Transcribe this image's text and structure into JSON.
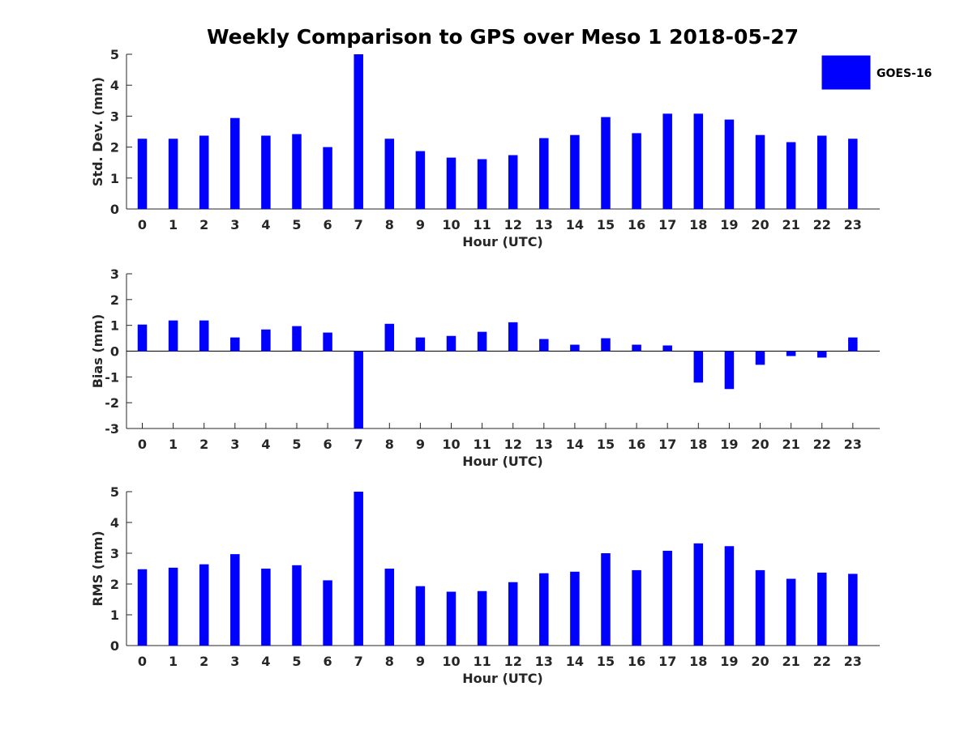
{
  "chart_data": {
    "title": "Weekly Comparison to GPS over Meso 1 2018-05-27",
    "type": "bar",
    "legend": {
      "label": "GOES-16",
      "color": "#0000ff",
      "placement": "top-right"
    },
    "categories": [
      "0",
      "1",
      "2",
      "3",
      "4",
      "5",
      "6",
      "7",
      "8",
      "9",
      "10",
      "11",
      "12",
      "13",
      "14",
      "15",
      "16",
      "17",
      "18",
      "19",
      "20",
      "21",
      "22",
      "23"
    ],
    "panels": [
      {
        "name": "std-dev",
        "xlabel": "Hour (UTC)",
        "ylabel": "Std. Dev. (mm)",
        "ylim": [
          0,
          5
        ],
        "yticks": [
          0,
          1,
          2,
          3,
          4,
          5
        ],
        "series": [
          {
            "name": "GOES-16",
            "values": [
              2.27,
              2.27,
              2.37,
              2.94,
              2.37,
              2.42,
              2.0,
              5.0,
              2.27,
              1.87,
              1.66,
              1.61,
              1.74,
              2.29,
              2.39,
              2.97,
              2.45,
              3.08,
              3.08,
              2.89,
              2.39,
              2.16,
              2.37,
              2.27
            ]
          }
        ]
      },
      {
        "name": "bias",
        "xlabel": "Hour (UTC)",
        "ylabel": "Bias (mm)",
        "ylim": [
          -3,
          3
        ],
        "yticks": [
          -3,
          -2,
          -1,
          0,
          1,
          2,
          3
        ],
        "series": [
          {
            "name": "GOES-16",
            "values": [
              1.03,
              1.19,
              1.19,
              0.53,
              0.84,
              0.97,
              0.72,
              -3.0,
              1.06,
              0.53,
              0.59,
              0.75,
              1.12,
              0.47,
              0.25,
              0.5,
              0.25,
              0.22,
              -1.22,
              -1.47,
              -0.53,
              -0.19,
              -0.25,
              0.53
            ]
          }
        ]
      },
      {
        "name": "rms",
        "xlabel": "Hour (UTC)",
        "ylabel": "RMS (mm)",
        "ylim": [
          0,
          5
        ],
        "yticks": [
          0,
          1,
          2,
          3,
          4,
          5
        ],
        "series": [
          {
            "name": "GOES-16",
            "values": [
              2.48,
              2.53,
              2.64,
              2.97,
              2.5,
              2.61,
              2.12,
              5.0,
              2.5,
              1.93,
              1.75,
              1.77,
              2.06,
              2.35,
              2.4,
              3.0,
              2.45,
              3.08,
              3.32,
              3.23,
              2.45,
              2.17,
              2.37,
              2.33
            ]
          }
        ]
      }
    ]
  }
}
